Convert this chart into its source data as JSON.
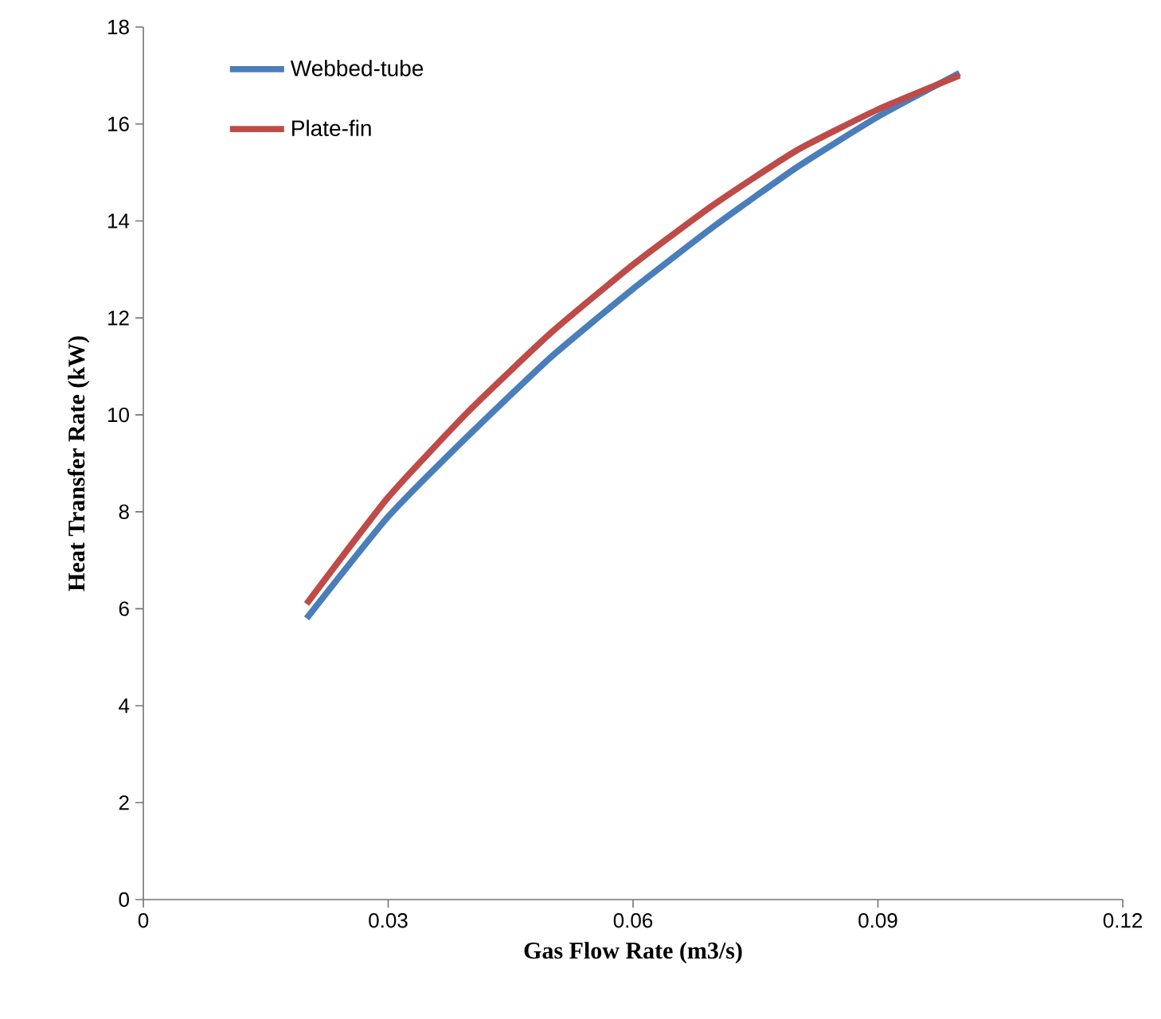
{
  "chart_data": {
    "type": "line",
    "xlabel": "Gas Flow Rate (m3/s)",
    "ylabel": "Heat Transfer Rate (kW)",
    "series": [
      {
        "name": "Webbed-tube",
        "color": "#4a7ebb",
        "x": [
          0.02,
          0.03,
          0.04,
          0.05,
          0.06,
          0.07,
          0.08,
          0.09,
          0.1
        ],
        "values": [
          5.8,
          7.9,
          9.6,
          11.2,
          12.6,
          13.9,
          15.1,
          16.15,
          17.05
        ]
      },
      {
        "name": "Plate-fin",
        "color": "#be4b48",
        "x": [
          0.02,
          0.03,
          0.04,
          0.05,
          0.06,
          0.07,
          0.08,
          0.09,
          0.1
        ],
        "values": [
          6.1,
          8.3,
          10.1,
          11.7,
          13.1,
          14.35,
          15.45,
          16.3,
          17.0
        ]
      }
    ],
    "xlim": [
      0,
      0.12
    ],
    "xticks": [
      0,
      0.03,
      0.06,
      0.09,
      0.12
    ],
    "ylim": [
      0,
      18
    ],
    "yticks": [
      0,
      2,
      4,
      6,
      8,
      10,
      12,
      14,
      16,
      18
    ],
    "grid": false,
    "legend": "top left",
    "marker": "none",
    "line_style": "solid"
  }
}
